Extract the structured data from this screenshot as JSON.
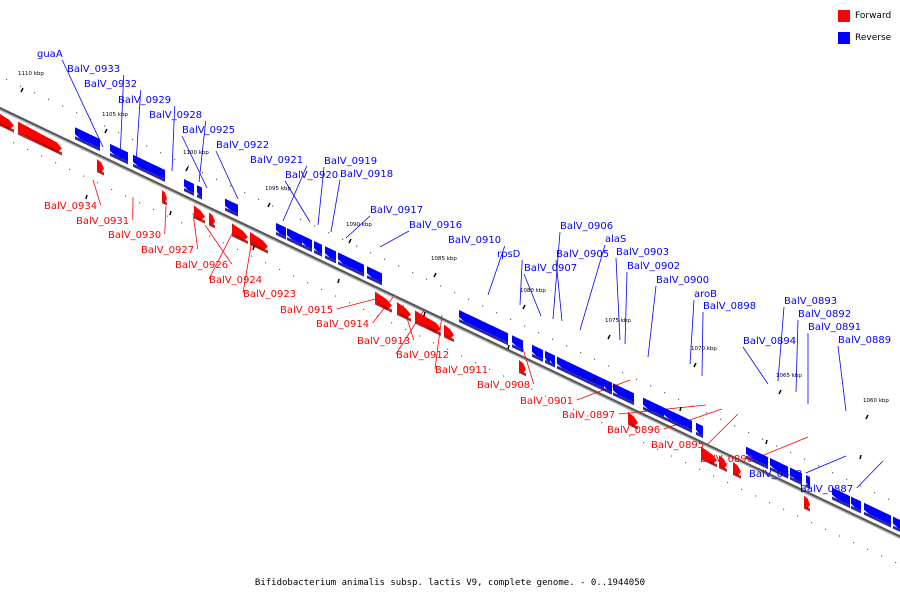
{
  "legend": {
    "forward": {
      "label": "Forward",
      "color": "#ff0000"
    },
    "reverse": {
      "label": "Reverse",
      "color": "#0000ff"
    }
  },
  "caption": "Bifidobacterium animalis subsp. lactis V9, complete genome. - 0..1944050",
  "ticks": [
    "1110 kbp",
    "1105 kbp",
    "1100 kbp",
    "1095 kbp",
    "1090 kbp",
    "1085 kbp",
    "1080 kbp",
    "1075 kbp",
    "1070 kbp",
    "1065 kbp",
    "1060 kbp"
  ],
  "reverse_labels": [
    "guaA",
    "BalV_0933",
    "BalV_0932",
    "BalV_0929",
    "BalV_0928",
    "BalV_0925",
    "BalV_0922",
    "BalV_0921",
    "BalV_0920",
    "BalV_0919",
    "BalV_0918",
    "BalV_0917",
    "BalV_0916",
    "BalV_0910",
    "rpsD",
    "BalV_0907",
    "BalV_0906",
    "BalV_0905",
    "alaS",
    "BalV_0903",
    "BalV_0902",
    "BalV_0900",
    "aroB",
    "BalV_0898",
    "BalV_0893",
    "BalV_0892",
    "BalV_0894",
    "BalV_0891",
    "BalV_0889",
    "BalV_0888",
    "BalV_0887"
  ],
  "forward_labels": [
    "BalV_0934",
    "BalV_0931",
    "BalV_0930",
    "BalV_0927",
    "BalV_0926",
    "BalV_0924",
    "BalV_0923",
    "BalV_0915",
    "BalV_0914",
    "BalV_0913",
    "BalV_0912",
    "BalV_0911",
    "BalV_0908",
    "BalV_0901",
    "BalV_0897",
    "BalV_0896",
    "BalV_0895",
    "BalV_0890"
  ]
}
